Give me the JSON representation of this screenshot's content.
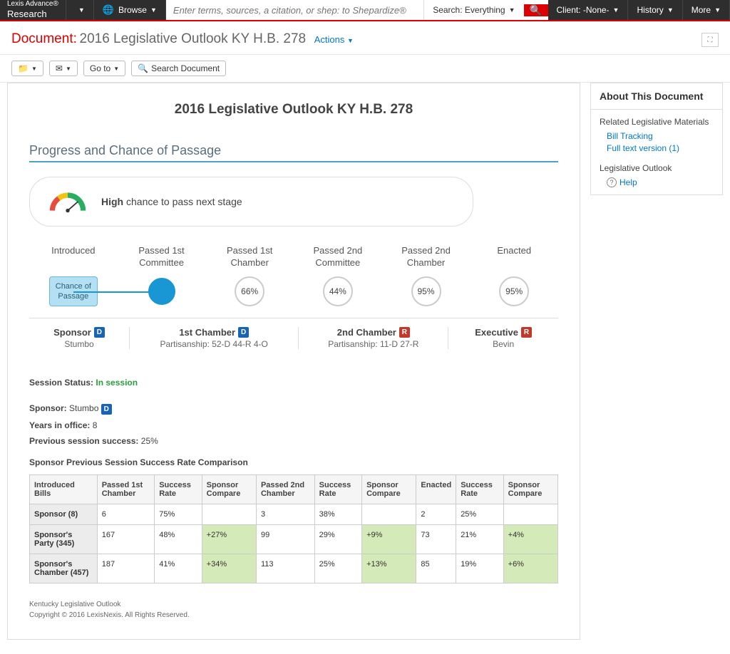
{
  "topbar": {
    "brand1": "Lexis Advance®",
    "brand2": "Research",
    "browse": "Browse",
    "search_placeholder": "Enter terms, sources, a citation, or shep: to Shepardize®",
    "search_scope": "Search: Everything",
    "client": "Client: -None-",
    "history": "History",
    "more": "More"
  },
  "header": {
    "label": "Document:",
    "title": "2016 Legislative Outlook KY H.B. 278",
    "actions": "Actions"
  },
  "toolbar": {
    "goto": "Go to",
    "searchdoc": "Search Document"
  },
  "doc": {
    "h1": "2016 Legislative Outlook KY H.B. 278",
    "section": "Progress and Chance of Passage",
    "gauge_strong": "High",
    "gauge_rest": " chance to pass next stage",
    "stages": {
      "s1": "Introduced",
      "s2a": "Passed 1st",
      "s2b": "Committee",
      "s3a": "Passed 1st",
      "s3b": "Chamber",
      "s4a": "Passed 2nd",
      "s4b": "Committee",
      "s5a": "Passed 2nd",
      "s5b": "Chamber",
      "s6": "Enacted",
      "chance1": "Chance of",
      "chance2": "Passage",
      "p3": "66%",
      "p4": "44%",
      "p5": "95%",
      "p6": "95%"
    },
    "party": {
      "sponsor_lbl": "Sponsor",
      "sponsor_name": "Stumbo",
      "c1_lbl": "1st Chamber",
      "c1_sub": "Partisanship: 52-D 44-R 4-O",
      "c2_lbl": "2nd Chamber",
      "c2_sub": "Partisanship: 11-D 27-R",
      "exec_lbl": "Executive",
      "exec_name": "Bevin"
    },
    "details": {
      "status_lbl": "Session Status:",
      "status_val": "In session",
      "sponsor_lbl": "Sponsor:",
      "sponsor_val": "Stumbo",
      "years_lbl": "Years in office:",
      "years_val": "8",
      "prev_lbl": "Previous session success:",
      "prev_val": "25%"
    },
    "table_title": "Sponsor Previous Session Success Rate Comparison",
    "table": {
      "headers": [
        "Introduced Bills",
        "Passed 1st Chamber",
        "Success Rate",
        "Sponsor Compare",
        "Passed 2nd Chamber",
        "Success Rate",
        "Sponsor Compare",
        "Enacted",
        "Success Rate",
        "Sponsor Compare"
      ],
      "rows": [
        {
          "h": "Sponsor (8)",
          "cells": [
            "6",
            "75%",
            "",
            "3",
            "38%",
            "",
            "2",
            "25%",
            ""
          ],
          "green": []
        },
        {
          "h": "Sponsor's Party (345)",
          "cells": [
            "167",
            "48%",
            "+27%",
            "99",
            "29%",
            "+9%",
            "73",
            "21%",
            "+4%"
          ],
          "green": [
            2,
            5,
            8
          ]
        },
        {
          "h": "Sponsor's Chamber (457)",
          "cells": [
            "187",
            "41%",
            "+34%",
            "113",
            "25%",
            "+13%",
            "85",
            "19%",
            "+6%"
          ],
          "green": [
            2,
            5,
            8
          ]
        }
      ]
    },
    "footer1": "Kentucky Legislative Outlook",
    "footer2": "Copyright © 2016 LexisNexis. All Rights Reserved."
  },
  "side": {
    "h": "About This Document",
    "sub1": "Related Legislative Materials",
    "link1": "Bill Tracking",
    "link2": "Full text version (1)",
    "sub2": "Legislative Outlook",
    "help": "Help"
  }
}
